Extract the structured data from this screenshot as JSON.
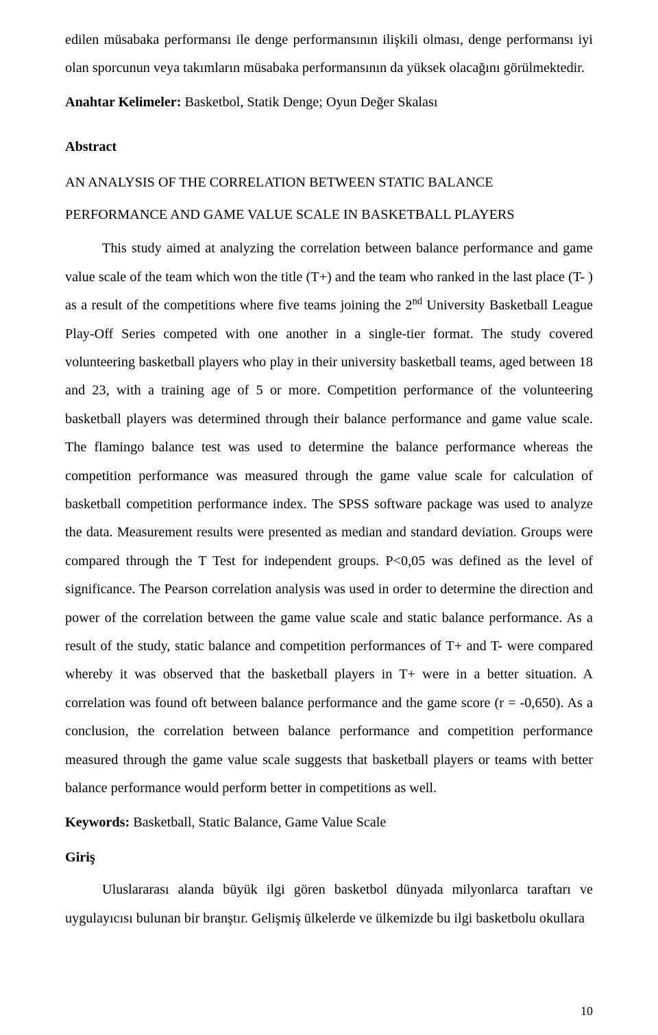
{
  "topParagraph": "edilen müsabaka performansı ile denge performansının ilişkili olması, denge performansı iyi olan sporcunun veya takımların müsabaka performansının da yüksek olacağını görülmektedir.",
  "anahtarKelimelerLabel": "Anahtar Kelimeler:",
  "anahtarKelimelerText": " Basketbol, Statik Denge; Oyun Değer Skalası",
  "abstractLabel": "Abstract",
  "enTitle1": "AN ANALYSIS OF THE CORRELATION BETWEEN STATIC BALANCE",
  "enTitle2": "PERFORMANCE AND GAME VALUE SCALE IN BASKETBALL PLAYERS",
  "abstractBody_pre": "This study aimed at analyzing the correlation between balance performance and game value scale of the team which won the title (T+) and the team who ranked in the last place (T- ) as a result of the competitions where five teams joining the 2",
  "sup": "nd",
  "abstractBody_post": " University Basketball League Play-Off Series competed with one another in a single-tier format. The study covered volunteering basketball players who play in their university basketball teams, aged between 18 and 23, with a training age of 5 or more. Competition performance of the volunteering basketball players was determined through their balance performance and game value scale. The flamingo balance test was used to determine the balance performance whereas the competition performance was measured through the game value scale for calculation of basketball competition performance index. The SPSS software package was used to analyze the data. Measurement results were presented as median and standard deviation. Groups were compared through the T Test for independent groups. P<0,05 was defined as the level of significance. The Pearson correlation analysis was used in order to determine the direction and power of the correlation between the game value scale and static balance performance. As a result of the study, static balance and competition performances of T+ and T- were compared whereby it was observed that the basketball players in T+ were in a better situation. A correlation was found oft between balance performance and the game score (r = -0,650). As a conclusion, the correlation between balance performance and competition performance measured through the game value scale suggests that basketball players or teams with better balance performance would perform better in competitions as well.",
  "keywordsLabel": "Keywords:",
  "keywordsText": " Basketball, Static Balance, Game Value Scale",
  "girisLabel": "Giriş",
  "girisBody": "Uluslararası alanda büyük ilgi gören basketbol dünyada milyonlarca taraftarı ve uygulayıcısı bulunan bir branştır. Gelişmiş ülkelerde ve ülkemizde bu ilgi basketbolu okullara",
  "pageNumber": "10"
}
